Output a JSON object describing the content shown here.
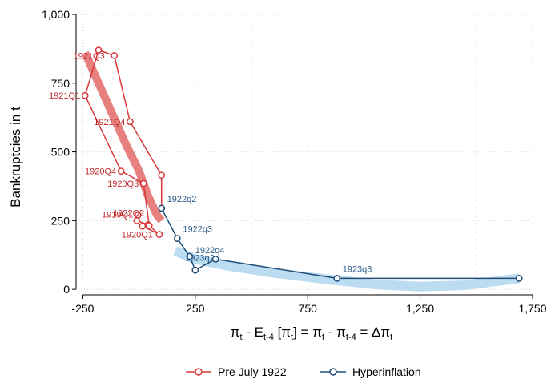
{
  "chart_data": {
    "type": "line",
    "title": "",
    "xlabel_parts": [
      "π",
      "t",
      " - E",
      "t-4",
      " [π",
      "t",
      "] = π",
      "t",
      " - π",
      "t-4",
      " =  Δπ",
      "t"
    ],
    "ylabel": "Bankruptcies in t",
    "xlim": [
      -280,
      1750
    ],
    "ylim": [
      -20,
      1000
    ],
    "xticks": [
      -250,
      250,
      750,
      1250,
      1750
    ],
    "xtick_labels": [
      "-250",
      "250",
      "750",
      "1,250",
      "1,750"
    ],
    "yticks": [
      0,
      250,
      500,
      750,
      1000
    ],
    "ytick_labels": [
      "0",
      "250",
      "500",
      "750",
      "1,000"
    ],
    "grid": true,
    "legend_position": "bottom",
    "colors": {
      "pre": "#d9383a",
      "pre_fit": "#e88080",
      "hyper": "#1f4e79",
      "hyper_fit": "#bcdcf2",
      "pre_label": "#c0282b",
      "hyper_label": "#2b5c8a"
    },
    "series": [
      {
        "name": "Pre July 1922",
        "color_key": "pre",
        "points": [
          {
            "x": -5,
            "y": 270,
            "label": "1919Q1"
          },
          {
            "x": -10,
            "y": 250,
            "label": ""
          },
          {
            "x": 40,
            "y": 235,
            "label": ""
          },
          {
            "x": 15,
            "y": 230,
            "label": ""
          },
          {
            "x": 90,
            "y": 200,
            "label": "1920Q1"
          },
          {
            "x": 45,
            "y": 232,
            "label": "1922Q2"
          },
          {
            "x": 20,
            "y": 385,
            "label": "1920Q3"
          },
          {
            "x": -80,
            "y": 430,
            "label": "1920Q4"
          },
          {
            "x": -240,
            "y": 705,
            "label": "1921Q1"
          },
          {
            "x": -180,
            "y": 870,
            "label": ""
          },
          {
            "x": -110,
            "y": 850,
            "label": "1921Q3"
          },
          {
            "x": -40,
            "y": 610,
            "label": "1921Q4"
          },
          {
            "x": 100,
            "y": 415,
            "label": ""
          },
          {
            "x": 100,
            "y": 295,
            "label": ""
          }
        ],
        "fit": [
          [
            -240,
            860
          ],
          [
            -180,
            750
          ],
          [
            -120,
            640
          ],
          [
            -60,
            530
          ],
          [
            0,
            430
          ],
          [
            40,
            340
          ],
          [
            80,
            270
          ],
          [
            100,
            250
          ]
        ]
      },
      {
        "name": "Hyperinflation",
        "color_key": "hyper",
        "points": [
          {
            "x": 100,
            "y": 295,
            "label": "1922q2"
          },
          {
            "x": 170,
            "y": 185,
            "label": "1922q3"
          },
          {
            "x": 225,
            "y": 120,
            "label": "1922q4"
          },
          {
            "x": 250,
            "y": 70,
            "label": ""
          },
          {
            "x": 340,
            "y": 110,
            "label": "1923q2"
          },
          {
            "x": 880,
            "y": 40,
            "label": "1923q3"
          },
          {
            "x": 1690,
            "y": 40,
            "label": ""
          }
        ],
        "fit": [
          [
            160,
            140
          ],
          [
            250,
            110
          ],
          [
            400,
            85
          ],
          [
            600,
            60
          ],
          [
            850,
            35
          ],
          [
            1050,
            18
          ],
          [
            1250,
            10
          ],
          [
            1450,
            15
          ],
          [
            1690,
            40
          ]
        ]
      }
    ]
  }
}
